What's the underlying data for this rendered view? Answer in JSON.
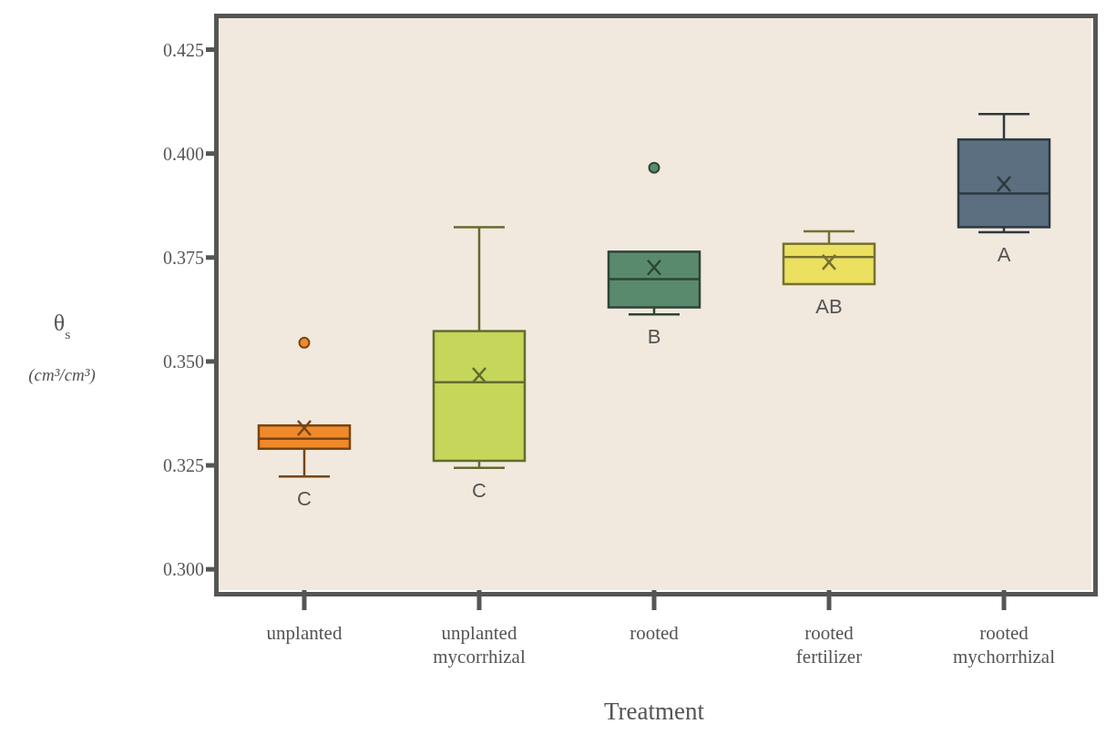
{
  "chart_data": {
    "type": "box",
    "xlabel": "Treatment",
    "ylabel": "θ$_{s}$\n(cm³/cm³)",
    "categories": [
      "unplanted",
      "unplanted mycorrhizal",
      "rooted",
      "rooted fertilizer",
      "rooted mychorrhizal"
    ],
    "colors": [
      "#f0892a",
      "#c5d65a",
      "#5a8a6e",
      "#ebe060",
      "#5b6f80"
    ],
    "boxes": [
      {
        "low": 0.3223,
        "q1": 0.329,
        "median": 0.3314,
        "q3": 0.3346,
        "high": 0.3346,
        "mean": 0.334,
        "outliers": [
          0.3545
        ]
      },
      {
        "low": 0.3244,
        "q1": 0.3261,
        "median": 0.345,
        "q3": 0.3573,
        "high": 0.3823,
        "mean": 0.3467
      },
      {
        "low": 0.3613,
        "q1": 0.363,
        "median": 0.3698,
        "q3": 0.3764,
        "high": 0.3764,
        "mean": 0.3726,
        "outliers": [
          0.3966
        ]
      },
      {
        "low": 0.3686,
        "q1": 0.3686,
        "median": 0.3751,
        "q3": 0.3783,
        "high": 0.3813,
        "mean": 0.3739
      },
      {
        "low": 0.3811,
        "q1": 0.3823,
        "median": 0.3904,
        "q3": 0.4034,
        "high": 0.4095,
        "mean": 0.3927
      }
    ],
    "annotations": [
      "C",
      "C",
      "B",
      "AB",
      "A"
    ],
    "ylim": [
      0.295,
      0.433
    ],
    "yticks": [
      {
        "value": 0.3,
        "label": "0.300"
      },
      {
        "value": 0.325,
        "label": "0.325"
      },
      {
        "value": 0.35,
        "label": "0.350"
      },
      {
        "value": 0.375,
        "label": "0.375"
      },
      {
        "value": 0.4,
        "label": "0.400"
      },
      {
        "value": 0.425,
        "label": "0.425"
      }
    ],
    "grid": false,
    "marker": "cross"
  }
}
